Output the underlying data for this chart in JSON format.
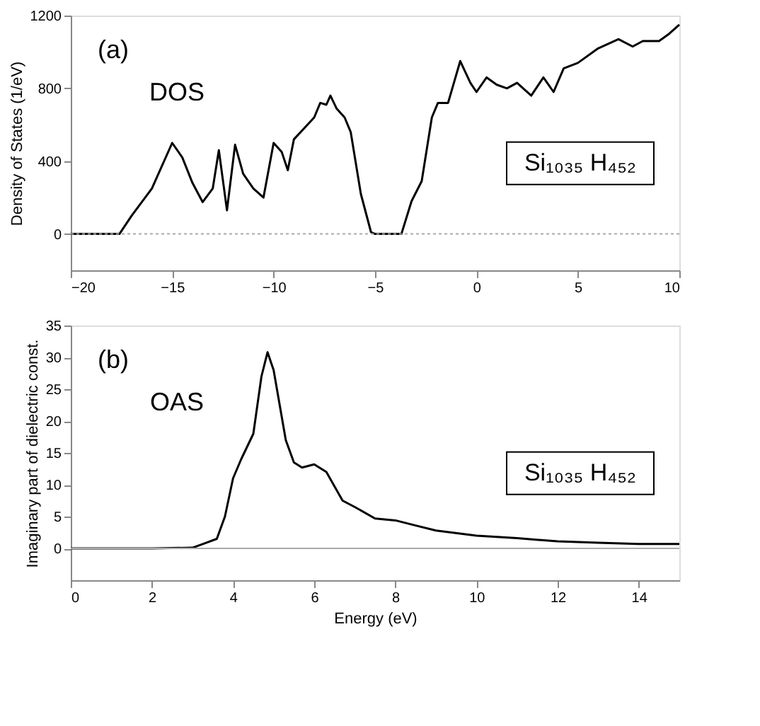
{
  "chart_data": [
    {
      "type": "line",
      "ylabel": "Density of States (1/eV)",
      "annotations": [
        "(a)",
        "DOS",
        "Si₁₀₃₅ H₄₅₂"
      ],
      "xlim": [
        -20,
        10
      ],
      "xticks": [
        -20,
        -15,
        -10,
        -5,
        0,
        5,
        10
      ],
      "ylim": [
        -200,
        1200
      ],
      "yticks": [
        0,
        400,
        800,
        1200
      ],
      "grid": false,
      "line_style": "solid",
      "marker": "none",
      "ref_lines": [
        {
          "axis": "y",
          "value": 0,
          "label": null,
          "color": "#aaaaaa",
          "line_style": "dotted"
        }
      ],
      "x": [
        -20,
        -17.6,
        -17,
        -16,
        -15,
        -14.5,
        -14,
        -13.5,
        -13,
        -12.7,
        -12.3,
        -11.9,
        -11.5,
        -11,
        -10.5,
        -10,
        -9.6,
        -9.3,
        -9,
        -8.5,
        -8,
        -7.7,
        -7.4,
        -7.2,
        -6.9,
        -6.5,
        -6.2,
        -5.7,
        -5.2,
        -5,
        -3.7,
        -3.2,
        -2.7,
        -2.2,
        -1.9,
        -1.4,
        -0.8,
        -0.3,
        0,
        0.5,
        1,
        1.5,
        2,
        2.7,
        3.3,
        3.8,
        4.3,
        5,
        6,
        7,
        7.7,
        8.2,
        9,
        9.5,
        10
      ],
      "series": [
        {
          "color": "#000000",
          "values": [
            0,
            0,
            100,
            250,
            500,
            420,
            280,
            175,
            250,
            460,
            130,
            490,
            330,
            250,
            200,
            500,
            450,
            350,
            520,
            580,
            640,
            720,
            710,
            760,
            690,
            640,
            560,
            220,
            10,
            0,
            0,
            180,
            290,
            640,
            720,
            720,
            950,
            830,
            780,
            860,
            820,
            800,
            830,
            760,
            860,
            780,
            910,
            940,
            1020,
            1070,
            1030,
            1060,
            1060,
            1100,
            1150
          ]
        }
      ]
    },
    {
      "type": "line",
      "xlabel": "Energy  (eV)",
      "ylabel": "Imaginary part of dielectric const.",
      "annotations": [
        "(b)",
        "OAS",
        "Si₁₀₃₅ H₄₅₂"
      ],
      "xlim": [
        0,
        15
      ],
      "xticks": [
        0,
        2,
        4,
        6,
        8,
        10,
        12,
        14
      ],
      "ylim": [
        -5,
        35
      ],
      "yticks": [
        0,
        5,
        10,
        15,
        20,
        25,
        30,
        35
      ],
      "grid": false,
      "line_style": "solid",
      "marker": "none",
      "ref_lines": [
        {
          "axis": "y",
          "value": 0,
          "label": null,
          "color": "#aaaaaa",
          "line_style": "solid"
        }
      ],
      "x": [
        0,
        2,
        3,
        3.3,
        3.6,
        3.8,
        4,
        4.2,
        4.5,
        4.7,
        4.85,
        5,
        5.3,
        5.5,
        5.7,
        6,
        6.3,
        6.7,
        7,
        7.5,
        8,
        8.5,
        9,
        10,
        11,
        12,
        13,
        14,
        15
      ],
      "series": [
        {
          "color": "#000000",
          "values": [
            0,
            0,
            0.1,
            0.8,
            1.5,
            5,
            11,
            14,
            18,
            27,
            30.8,
            28,
            17,
            13.5,
            12.7,
            13.2,
            12,
            7.5,
            6.5,
            4.7,
            4.4,
            3.6,
            2.8,
            2.0,
            1.6,
            1.1,
            0.9,
            0.7,
            0.7
          ]
        }
      ]
    }
  ]
}
